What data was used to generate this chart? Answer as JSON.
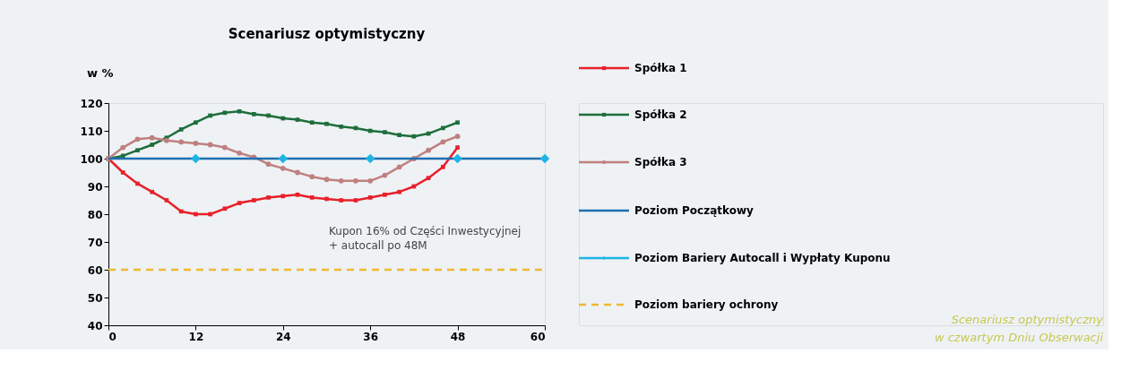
{
  "chart_data": {
    "type": "line",
    "title": "Scenariusz optymistyczny",
    "ylabel": "w %",
    "xlim": [
      0,
      60
    ],
    "xticks": [
      0,
      12,
      24,
      36,
      48,
      60
    ],
    "ylim": [
      40,
      120
    ],
    "yticks": [
      40,
      50,
      60,
      70,
      80,
      90,
      100,
      110,
      120
    ],
    "grid": false,
    "legend": "right",
    "annotations": [
      "Kupon 16% od Części Inwestycyjnej\n+ autocall po 48M",
      "Scenariusz optymistyczny\nw czwartym Dniu Obserwacji"
    ],
    "series": [
      {
        "name": "Spółka 1",
        "color": "#e8202a",
        "marker": "square",
        "line_style": "solid",
        "x": [
          0,
          2,
          4,
          6,
          8,
          10,
          12,
          14,
          16,
          18,
          20,
          22,
          24,
          26,
          28,
          30,
          32,
          34,
          36,
          38,
          40,
          42,
          44,
          46,
          48
        ],
        "values": [
          100,
          95,
          91,
          88,
          85,
          81,
          80,
          80,
          82,
          84,
          85,
          86,
          86.5,
          87,
          86,
          85.5,
          85,
          85,
          86,
          87,
          88,
          90,
          93,
          97,
          104
        ]
      },
      {
        "name": "Spółka 2",
        "color": "#1e6e3c",
        "marker": "square",
        "line_style": "solid",
        "x": [
          0,
          2,
          4,
          6,
          8,
          10,
          12,
          14,
          16,
          18,
          20,
          22,
          24,
          26,
          28,
          30,
          32,
          34,
          36,
          38,
          40,
          42,
          44,
          46,
          48
        ],
        "values": [
          100,
          101,
          103,
          105,
          107.5,
          110.5,
          113,
          115.5,
          116.5,
          117,
          116,
          115.5,
          114.5,
          114,
          113,
          112.5,
          111.5,
          111,
          110,
          109.5,
          108.5,
          108,
          109,
          111,
          113
        ]
      },
      {
        "name": "Spółka 3",
        "color": "#c08080",
        "marker": "circle",
        "line_style": "solid",
        "x": [
          0,
          2,
          4,
          6,
          8,
          10,
          12,
          14,
          16,
          18,
          20,
          22,
          24,
          26,
          28,
          30,
          32,
          34,
          36,
          38,
          40,
          42,
          44,
          46,
          48
        ],
        "values": [
          100,
          104,
          107,
          107.5,
          106.5,
          106,
          105.5,
          105,
          104,
          102,
          100.5,
          98,
          96.5,
          95,
          93.5,
          92.5,
          92,
          92,
          92,
          94,
          97,
          100,
          103,
          106,
          108
        ]
      },
      {
        "name": "Poziom Początkowy",
        "color": "#1f6fb0",
        "marker": "none",
        "line_style": "solid",
        "x": [
          0,
          60
        ],
        "values": [
          100,
          100
        ]
      },
      {
        "name": "Poziom Bariery Autocall i Wypłaty Kuponu",
        "color": "#1eb4e6",
        "type": "scatter",
        "marker": "diamond",
        "x": [
          12,
          24,
          36,
          48,
          60
        ],
        "values": [
          100,
          100,
          100,
          100,
          100
        ]
      },
      {
        "name": "Poziom bariery ochrony",
        "color": "#f0b830",
        "marker": "none",
        "line_style": "dashed",
        "x": [
          0,
          60
        ],
        "values": [
          60,
          60
        ]
      }
    ]
  }
}
